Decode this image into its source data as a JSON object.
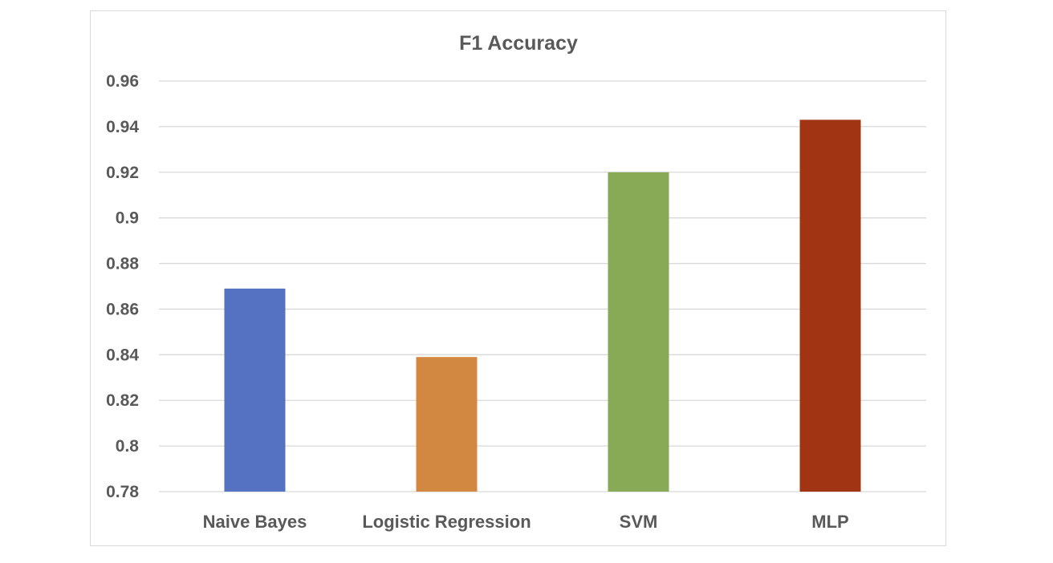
{
  "chart_data": {
    "type": "bar",
    "title": "F1 Accuracy",
    "categories": [
      "Naive Bayes",
      "Logistic Regression",
      "SVM",
      "MLP"
    ],
    "values": [
      0.869,
      0.839,
      0.92,
      0.943
    ],
    "colors": [
      "#5571c2",
      "#d38841",
      "#88a955",
      "#a03413"
    ],
    "ylim": [
      0.78,
      0.96
    ],
    "yticks": [
      "0.96",
      "0.94",
      "0.92",
      "0.9",
      "0.88",
      "0.86",
      "0.84",
      "0.82",
      "0.8",
      "0.78"
    ],
    "grid": true,
    "legend": "none"
  }
}
